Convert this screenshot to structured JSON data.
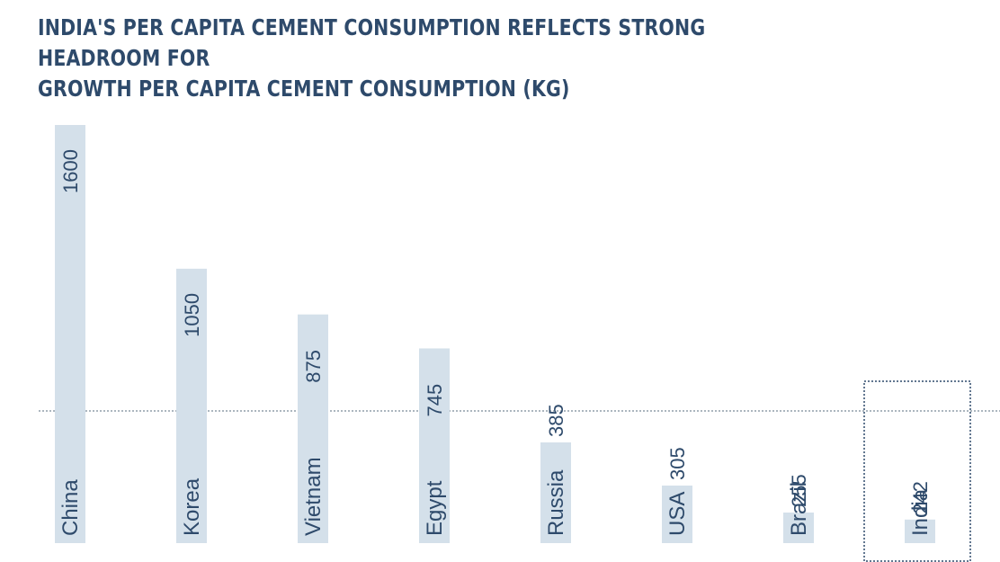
{
  "chart_data": {
    "type": "bar",
    "title_line1": "India's per capita cement consumption reflects strong headroom for",
    "title_line2": "growth Per capita cement consumption (kg)",
    "categories": [
      "China",
      "Korea",
      "Vietnam",
      "Egypt",
      "Russia",
      "USA",
      "Brazil",
      "India"
    ],
    "values": [
      1600,
      1050,
      875,
      745,
      385,
      305,
      255,
      242
    ],
    "value_labels": [
      "1600",
      "1050",
      "875",
      "745",
      "385",
      "305",
      "255",
      "242"
    ],
    "ylim": [
      0,
      1600
    ],
    "xlabel": "",
    "ylabel": "",
    "highlight": "India",
    "colors": {
      "bar": "#d4e0ea",
      "text": "#2e4a6b"
    }
  }
}
